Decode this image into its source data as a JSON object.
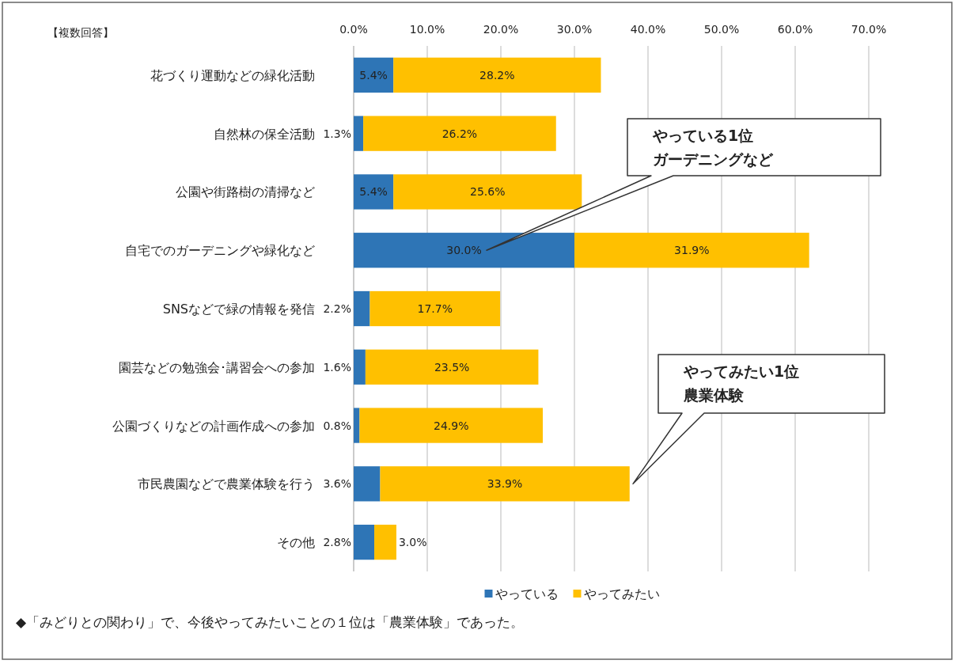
{
  "chart_data": {
    "type": "bar",
    "orientation": "horizontal",
    "stacked": true,
    "subtitle": "【複数回答】",
    "categories": [
      "花づくり運動などの緑化活動",
      "自然林の保全活動",
      "公園や街路樹の清掃など",
      "自宅でのガーデニングや緑化など",
      "SNSなどで緑の情報を発信",
      "園芸などの勉強会･講習会への参加",
      "公園づくりなどの計画作成への参加",
      "市民農園などで農業体験を行う",
      "その他"
    ],
    "series": [
      {
        "name": "やっている",
        "color": "#2e75b6",
        "values": [
          5.4,
          1.3,
          5.4,
          30.0,
          2.2,
          1.6,
          0.8,
          3.6,
          2.8
        ],
        "value_labels": [
          "5.4%",
          "1.3%",
          "5.4%",
          "30.0%",
          "2.2%",
          "1.6%",
          "0.8%",
          "3.6%",
          "2.8%"
        ]
      },
      {
        "name": "やってみたい",
        "color": "#ffc000",
        "values": [
          28.2,
          26.2,
          25.6,
          31.9,
          17.7,
          23.5,
          24.9,
          33.9,
          3.0
        ],
        "value_labels": [
          "28.2%",
          "26.2%",
          "25.6%",
          "31.9%",
          "17.7%",
          "23.5%",
          "24.9%",
          "33.9%",
          "3.0%"
        ]
      }
    ],
    "xlim": [
      0,
      70
    ],
    "xticks": [
      {
        "value": 0,
        "label": "0.0%"
      },
      {
        "value": 10,
        "label": "10.0%"
      },
      {
        "value": 20,
        "label": "20.0%"
      },
      {
        "value": 30,
        "label": "30.0%"
      },
      {
        "value": 40,
        "label": "40.0%"
      },
      {
        "value": 50,
        "label": "50.0%"
      },
      {
        "value": 60,
        "label": "60.0%"
      },
      {
        "value": 70,
        "label": "70.0%"
      }
    ],
    "grid": "x",
    "legend": "bottom",
    "annotations": [
      "やっている1位",
      "ガーデニングなど",
      "やってみたい1位",
      "農業体験",
      "◆「みどりとの関わり」で、今後やってみたいことの１位は「農業体験」であった。"
    ]
  }
}
